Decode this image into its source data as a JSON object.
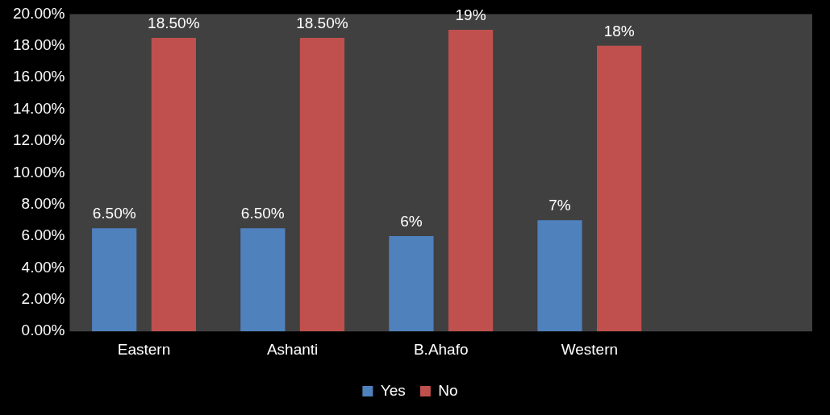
{
  "chart_data": {
    "type": "bar",
    "categories": [
      "Eastern",
      "Ashanti",
      "B.Ahafo",
      "Western",
      null
    ],
    "series": [
      {
        "name": "Yes",
        "color": "#4f81bd",
        "values": [
          6.5,
          6.5,
          6,
          7,
          null
        ],
        "value_labels": [
          "6.50%",
          "6.50%",
          "6%",
          "7%",
          null
        ]
      },
      {
        "name": "No",
        "color": "#c0504d",
        "values": [
          18.5,
          18.5,
          19,
          18,
          null
        ],
        "value_labels": [
          "18.50%",
          "18.50%",
          "19%",
          "18%",
          null
        ]
      }
    ],
    "ylim": [
      0,
      20
    ],
    "yticks": [
      {
        "value": 0,
        "label": "0.00%"
      },
      {
        "value": 2,
        "label": "2.00%"
      },
      {
        "value": 4,
        "label": "4.00%"
      },
      {
        "value": 6,
        "label": "6.00%"
      },
      {
        "value": 8,
        "label": "8.00%"
      },
      {
        "value": 10,
        "label": "10.00%"
      },
      {
        "value": 12,
        "label": "12.00%"
      },
      {
        "value": 14,
        "label": "14.00%"
      },
      {
        "value": 16,
        "label": "16.00%"
      },
      {
        "value": 18,
        "label": "18.00%"
      },
      {
        "value": 20,
        "label": "20.00%"
      }
    ],
    "grid": false,
    "legend": "bottom"
  }
}
